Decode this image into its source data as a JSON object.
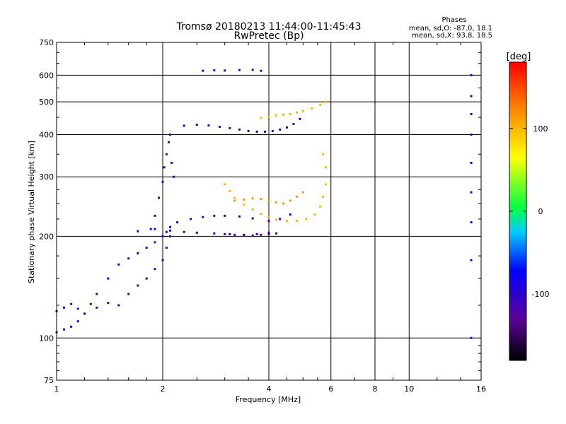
{
  "chart_data": {
    "type": "scatter",
    "title": "Tromsø 20180213 11:44:00-11:45:43",
    "subtitle": "RwPretec (Bp)",
    "xlabel": "Frequency [MHz]",
    "ylabel": "Stationary phase Virtual Height [km]",
    "x_scale": "log",
    "y_scale": "log",
    "xlim": [
      1,
      16
    ],
    "ylim": [
      75,
      750
    ],
    "x_ticks": [
      1,
      2,
      4,
      6,
      8,
      10,
      16
    ],
    "y_ticks": [
      75,
      100,
      200,
      300,
      400,
      500,
      600,
      750
    ],
    "grid": true,
    "stats": {
      "heading": "Phases",
      "o_line": "mean, sd,O: -87.0, 18.1",
      "x_line": "mean, sd,X:  93.8, 18.5"
    },
    "colorbar": {
      "label": "[deg]",
      "range": [
        -180,
        180
      ],
      "ticks": [
        -100,
        0,
        100
      ],
      "colormap": "rainbow (black-purple-blue-cyan-green-yellow-red)"
    },
    "series": [
      {
        "phase_deg": -100,
        "x": [
          1.0,
          1.05,
          1.1,
          1.15,
          1.2,
          1.25,
          1.3,
          1.4,
          1.5,
          1.6,
          1.7,
          1.8,
          1.9,
          2.0,
          2.05,
          2.1,
          2.2,
          2.4,
          2.6,
          2.8,
          3.0,
          3.3,
          3.6,
          4.0,
          4.3,
          4.6
        ],
        "y": [
          104,
          106,
          108,
          112,
          118,
          126,
          135,
          150,
          165,
          172,
          178,
          185,
          192,
          200,
          206,
          213,
          220,
          225,
          228,
          230,
          230,
          229,
          226,
          222,
          225,
          232
        ]
      },
      {
        "phase_deg": -105,
        "x": [
          1.0,
          1.05,
          1.1,
          1.15,
          1.2,
          1.3,
          1.4,
          1.5,
          1.6,
          1.7,
          1.8,
          1.9,
          2.0,
          2.05,
          2.1
        ],
        "y": [
          120,
          123,
          126,
          122,
          118,
          123,
          127,
          125,
          135,
          143,
          150,
          160,
          170,
          185,
          200
        ]
      },
      {
        "phase_deg": -110,
        "x": [
          1.85,
          1.9,
          1.95,
          2.0,
          2.02,
          2.05,
          2.08,
          2.1,
          2.12,
          2.15
        ],
        "y": [
          210,
          230,
          260,
          290,
          320,
          350,
          380,
          400,
          330,
          300
        ]
      },
      {
        "phase_deg": -100,
        "x": [
          2.3,
          2.5,
          2.7,
          2.9,
          3.1,
          3.3,
          3.5,
          3.7,
          3.9,
          4.1,
          4.3,
          4.5,
          4.7,
          4.9
        ],
        "y": [
          425,
          428,
          426,
          422,
          418,
          414,
          410,
          408,
          408,
          410,
          414,
          420,
          430,
          445
        ]
      },
      {
        "phase_deg": -95,
        "x": [
          1.7,
          1.9,
          2.1,
          2.3,
          2.5,
          2.8,
          3.1,
          3.4,
          3.7,
          4.0
        ],
        "y": [
          207,
          210,
          208,
          206,
          205,
          204,
          203,
          202,
          203,
          205
        ]
      },
      {
        "phase_deg": -140,
        "x": [
          3.0,
          3.2,
          3.4,
          3.6,
          3.8,
          4.0,
          4.2
        ],
        "y": [
          203,
          202,
          201,
          201,
          202,
          203,
          204
        ]
      },
      {
        "phase_deg": -105,
        "x": [
          2.6,
          2.8,
          3.0,
          3.3,
          3.6,
          3.8
        ],
        "y": [
          618,
          620,
          619,
          621,
          622,
          618
        ]
      },
      {
        "phase_deg": -100,
        "x": [
          15.0,
          15.0,
          15.0,
          15.0,
          15.0,
          15.0,
          15.0,
          15.0,
          15.0
        ],
        "y": [
          600,
          520,
          460,
          400,
          330,
          270,
          220,
          170,
          100
        ]
      },
      {
        "phase_deg": 100,
        "x": [
          3.0,
          3.1,
          3.2,
          3.4,
          3.6,
          3.8,
          4.0,
          4.2,
          4.5,
          4.8,
          5.1,
          5.4,
          5.6,
          5.7,
          5.8,
          5.8,
          5.7
        ],
        "y": [
          285,
          272,
          260,
          248,
          240,
          233,
          228,
          224,
          222,
          222,
          225,
          232,
          245,
          262,
          285,
          320,
          350
        ]
      },
      {
        "phase_deg": 115,
        "x": [
          3.2,
          3.4,
          3.6,
          3.8,
          4.0,
          4.2,
          4.4,
          4.6,
          4.8,
          5.0
        ],
        "y": [
          255,
          257,
          259,
          258,
          255,
          252,
          250,
          255,
          262,
          270
        ]
      },
      {
        "phase_deg": 100,
        "x": [
          3.8,
          4.0,
          4.2,
          4.4,
          4.6,
          4.8,
          5.0,
          5.3,
          5.6,
          5.8
        ],
        "y": [
          448,
          452,
          456,
          458,
          460,
          465,
          470,
          478,
          490,
          500
        ]
      }
    ]
  }
}
